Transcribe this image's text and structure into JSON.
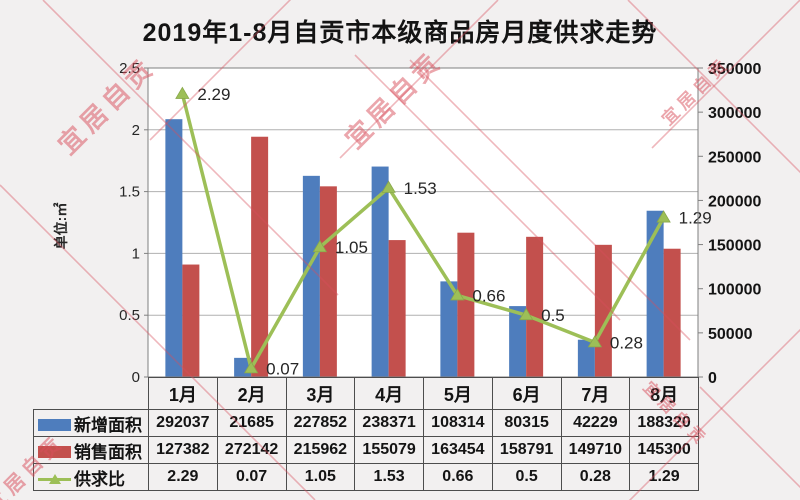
{
  "title": "2019年1-8月自贡市本级商品房月度供求走势",
  "watermark": {
    "text": "宜居自贡",
    "color": "#d94f5c"
  },
  "chart_data": {
    "type": "bar",
    "subtype": "bar+line combo, dual axis",
    "title": "2019年1-8月自贡市本级商品房月度供求走势",
    "categories": [
      "1月",
      "2月",
      "3月",
      "4月",
      "5月",
      "6月",
      "7月",
      "8月"
    ],
    "series": [
      {
        "name": "新增面积",
        "kind": "bar",
        "axis": "right",
        "color": "#4e7dbd",
        "values": [
          292037,
          21685,
          227852,
          238371,
          108314,
          80315,
          42229,
          188320
        ]
      },
      {
        "name": "销售面积",
        "kind": "bar",
        "axis": "right",
        "color": "#c3504d",
        "values": [
          127382,
          272142,
          215962,
          155079,
          163454,
          158791,
          149710,
          145300
        ]
      },
      {
        "name": "供求比",
        "kind": "line",
        "axis": "left",
        "color": "#9dbf57",
        "marker": "triangle-up",
        "values": [
          2.29,
          0.07,
          1.05,
          1.53,
          0.66,
          0.5,
          0.28,
          1.29
        ],
        "labels": [
          "2.29",
          "0.07",
          "1.05",
          "1.53",
          "0.66",
          "0.5",
          "0.28",
          "1.29"
        ]
      }
    ],
    "left_axis": {
      "title": "单位:㎡",
      "min": 0,
      "max": 2.5,
      "step": 0.5,
      "ticks": [
        "0",
        "0.5",
        "1",
        "1.5",
        "2",
        "2.5"
      ]
    },
    "right_axis": {
      "min": 0,
      "max": 350000,
      "step": 50000,
      "ticks": [
        "0",
        "50000",
        "100000",
        "150000",
        "200000",
        "250000",
        "300000",
        "350000"
      ]
    },
    "grid": true,
    "legend_position": "table-left"
  },
  "table": {
    "header": [
      "1月",
      "2月",
      "3月",
      "4月",
      "5月",
      "6月",
      "7月",
      "8月"
    ],
    "rows": [
      {
        "key": "new-area",
        "swatch": "blue-bar",
        "label": "新增面积",
        "values": [
          "292037",
          "21685",
          "227852",
          "238371",
          "108314",
          "80315",
          "42229",
          "188320"
        ]
      },
      {
        "key": "sold-area",
        "swatch": "red-bar",
        "label": "销售面积",
        "values": [
          "127382",
          "272142",
          "215962",
          "155079",
          "163454",
          "158791",
          "149710",
          "145300"
        ]
      },
      {
        "key": "ratio",
        "swatch": "green-line",
        "label": "供求比",
        "values": [
          "2.29",
          "0.07",
          "1.05",
          "1.53",
          "0.66",
          "0.5",
          "0.28",
          "1.29"
        ]
      }
    ]
  }
}
